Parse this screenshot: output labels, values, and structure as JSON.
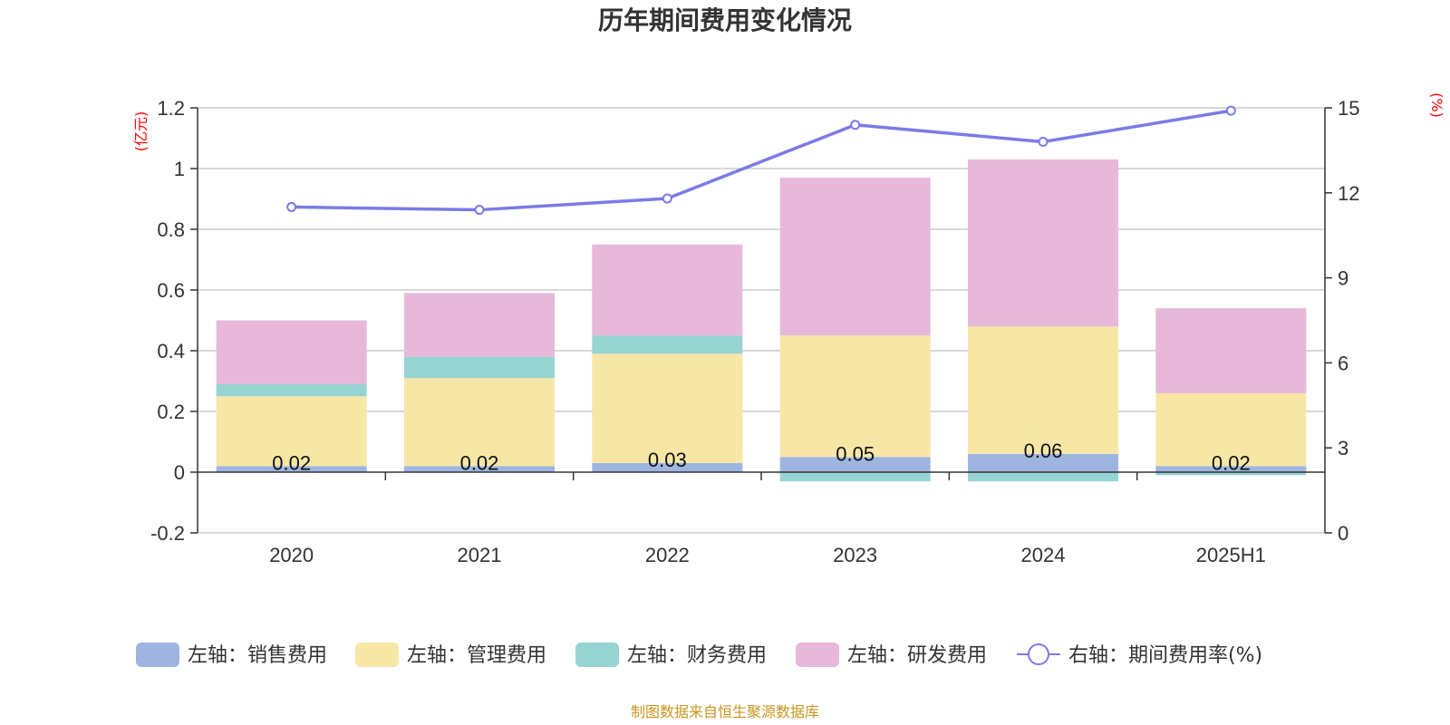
{
  "chart_data": {
    "type": "bar",
    "stacked": true,
    "title": "历年期间费用变化情况",
    "categories": [
      "2020",
      "2021",
      "2022",
      "2023",
      "2024",
      "2025H1"
    ],
    "left_axis": {
      "unit": "(亿元)",
      "ylim": [
        -0.2,
        1.2
      ],
      "ticks": [
        "1.2",
        "1",
        "0.8",
        "0.6",
        "0.4",
        "0.2",
        "0",
        "-0.2"
      ],
      "tick_values": [
        1.2,
        1,
        0.8,
        0.6,
        0.4,
        0.2,
        0,
        -0.2
      ]
    },
    "right_axis": {
      "unit": "(%)",
      "ylim": [
        0,
        15
      ],
      "ticks": [
        "15",
        "12",
        "9",
        "6",
        "3",
        "0"
      ],
      "tick_values": [
        15,
        12,
        9,
        6,
        3,
        0
      ]
    },
    "series": [
      {
        "name": "左轴：销售费用",
        "axis": "left",
        "type": "bar",
        "color": "#9db5e0",
        "values": [
          0.02,
          0.02,
          0.03,
          0.05,
          0.06,
          0.02
        ]
      },
      {
        "name": "左轴：管理费用",
        "axis": "left",
        "type": "bar",
        "color": "#f8e6a6",
        "values": [
          0.23,
          0.29,
          0.36,
          0.4,
          0.42,
          0.24
        ]
      },
      {
        "name": "左轴：财务费用",
        "axis": "left",
        "type": "bar",
        "color": "#96d4d3",
        "values": [
          0.04,
          0.07,
          0.06,
          -0.03,
          -0.03,
          -0.01
        ]
      },
      {
        "name": "左轴：研发费用",
        "axis": "left",
        "type": "bar",
        "color": "#e7b8d9",
        "values": [
          0.21,
          0.21,
          0.3,
          0.52,
          0.55,
          0.28
        ]
      },
      {
        "name": "右轴：期间费用率(%)",
        "axis": "right",
        "type": "line",
        "color": "#7b7ae8",
        "values": [
          11.5,
          11.4,
          11.8,
          14.4,
          13.8,
          14.9
        ]
      }
    ],
    "data_labels": [
      "0.02",
      "0.02",
      "0.03",
      "0.05",
      "0.06",
      "0.02"
    ],
    "grid": true,
    "legend_position": "bottom"
  },
  "source_note": "制图数据来自恒生聚源数据库"
}
